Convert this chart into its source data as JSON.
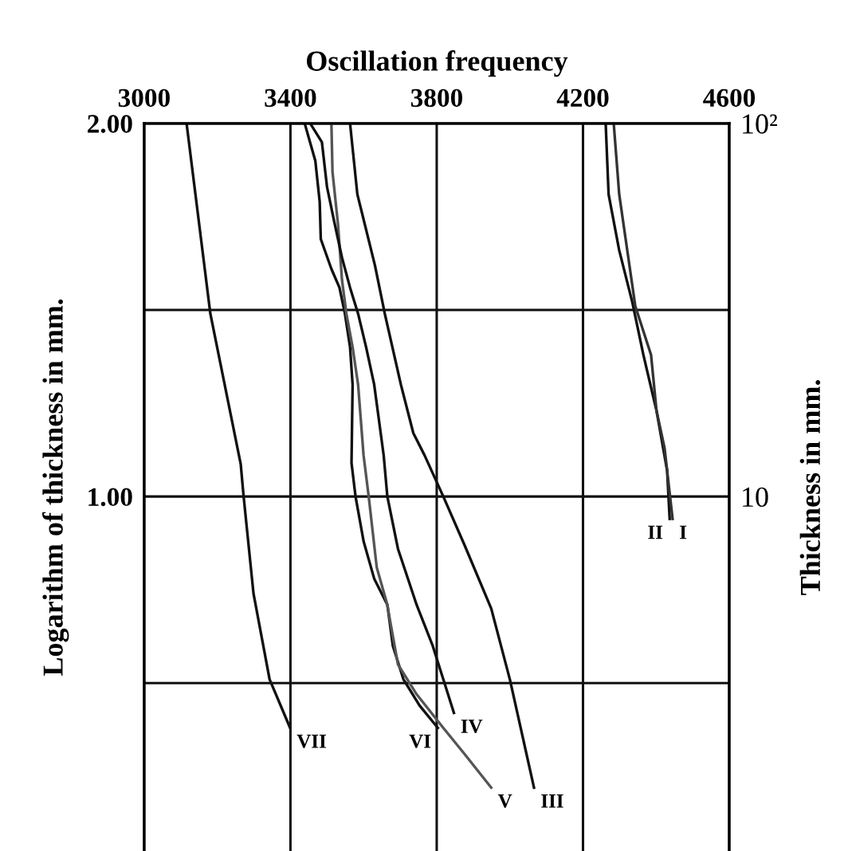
{
  "chart_data": {
    "type": "line",
    "xlabel": "Oscillation frequency",
    "ylabel": "Logarithm of thickness in mm.",
    "y2label": "Thickness in mm.",
    "xlim": [
      3000,
      4600
    ],
    "xticks": [
      3000,
      3400,
      3800,
      4200,
      4600
    ],
    "ylim": [
      0.05,
      2.0
    ],
    "yticks": [
      {
        "value": 2.0,
        "label": "2.00"
      },
      {
        "value": 1.5,
        "label": null
      },
      {
        "value": 1.0,
        "label": "1.00"
      },
      {
        "value": 0.5,
        "label": null
      }
    ],
    "y2lim": [
      1.122,
      100
    ],
    "y2ticks": [
      10,
      {
        "value": 100,
        "label": "10²"
      }
    ],
    "log": "y2",
    "grid": true,
    "series": [
      {
        "name": "VII",
        "color": "#111111",
        "x": [
          3116,
          3181,
          3264,
          3272,
          3299,
          3343,
          3399
        ],
        "values": [
          2.0,
          1.49,
          1.087,
          1.0,
          0.74,
          0.51,
          0.38
        ]
      },
      {
        "name": "VI",
        "color": "#111111",
        "x": [
          3439,
          3468,
          3480,
          3483,
          3512,
          3534,
          3549,
          3563,
          3570,
          3567,
          3578,
          3600,
          3629,
          3665,
          3680,
          3709,
          3753,
          3803
        ],
        "values": [
          2.0,
          1.9,
          1.79,
          1.69,
          1.61,
          1.56,
          1.49,
          1.4,
          1.3,
          1.09,
          1.0,
          0.88,
          0.78,
          0.71,
          0.6,
          0.51,
          0.44,
          0.38
        ]
      },
      {
        "name": "V",
        "color": "#555555",
        "x": [
          3512,
          3515,
          3530,
          3541,
          3553,
          3570,
          3585,
          3600,
          3614,
          3636,
          3665,
          3672,
          3694,
          3745,
          3818,
          3876,
          3949
        ],
        "values": [
          2.0,
          1.87,
          1.73,
          1.58,
          1.49,
          1.4,
          1.3,
          1.11,
          1.0,
          0.81,
          0.71,
          0.67,
          0.55,
          0.47,
          0.38,
          0.31,
          0.22
        ]
      },
      {
        "name": "IV",
        "color": "#111111",
        "x": [
          3454,
          3486,
          3500,
          3519,
          3541,
          3563,
          3585,
          3607,
          3629,
          3655,
          3665,
          3694,
          3745,
          3789,
          3818,
          3847
        ],
        "values": [
          2.0,
          1.95,
          1.83,
          1.74,
          1.64,
          1.56,
          1.49,
          1.4,
          1.3,
          1.11,
          1.0,
          0.86,
          0.71,
          0.6,
          0.51,
          0.42
        ]
      },
      {
        "name": "III",
        "color": "#111111",
        "x": [
          3563,
          3583,
          3631,
          3658,
          3702,
          3736,
          3767,
          3818,
          3876,
          3949,
          4000,
          4066
        ],
        "values": [
          2.0,
          1.81,
          1.62,
          1.49,
          1.3,
          1.17,
          1.11,
          1.0,
          0.87,
          0.7,
          0.51,
          0.22
        ]
      },
      {
        "name": "II",
        "color": "#111111",
        "x": [
          4262,
          4270,
          4299,
          4335,
          4365,
          4401,
          4430,
          4437
        ],
        "values": [
          2.0,
          1.81,
          1.66,
          1.52,
          1.38,
          1.23,
          1.07,
          0.94
        ]
      },
      {
        "name": "I",
        "color": "#333333",
        "x": [
          4284,
          4299,
          4321,
          4343,
          4386,
          4401,
          4423,
          4445
        ],
        "values": [
          2.0,
          1.81,
          1.66,
          1.51,
          1.38,
          1.23,
          1.13,
          0.94
        ]
      }
    ]
  }
}
